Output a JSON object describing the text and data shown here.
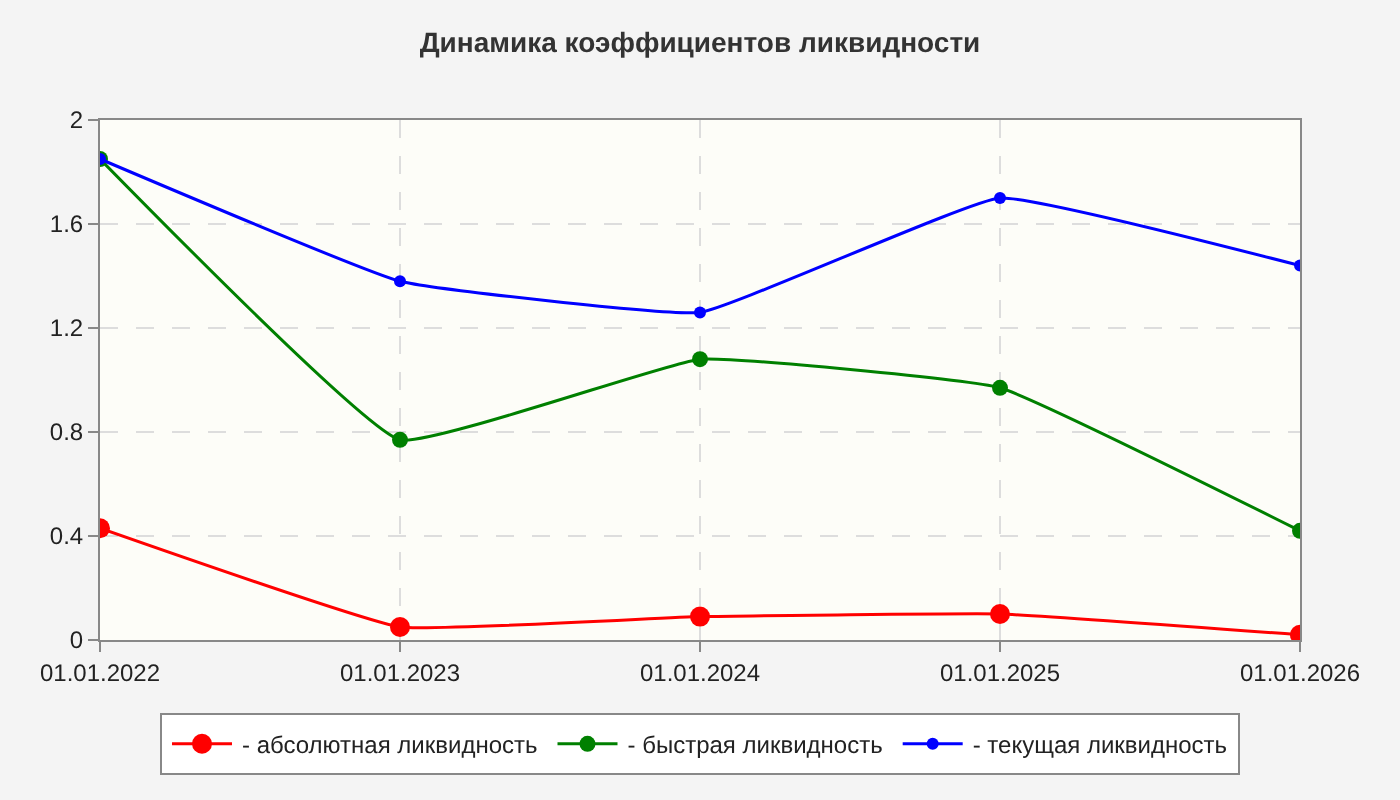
{
  "chart_data": {
    "type": "line",
    "title": "Динамика коэффициентов ликвидности",
    "categories": [
      "01.01.2022",
      "01.01.2023",
      "01.01.2024",
      "01.01.2025",
      "01.01.2026"
    ],
    "series": [
      {
        "name": "- абсолютная ликвидность",
        "color": "#ff0000",
        "values": [
          0.43,
          0.05,
          0.09,
          0.1,
          0.02
        ]
      },
      {
        "name": "- быстрая ликвидность",
        "color": "#008000",
        "values": [
          1.85,
          0.77,
          1.08,
          0.97,
          0.42
        ]
      },
      {
        "name": "- текущая ликвидность",
        "color": "#0000ff",
        "values": [
          1.85,
          1.38,
          1.26,
          1.7,
          1.44
        ]
      }
    ],
    "ylim": [
      0,
      2
    ],
    "yticks": [
      0,
      0.4,
      0.8,
      1.2,
      1.6,
      2
    ],
    "grid": true,
    "legend": "bottom",
    "marker": "circle",
    "line_style": "solid"
  }
}
